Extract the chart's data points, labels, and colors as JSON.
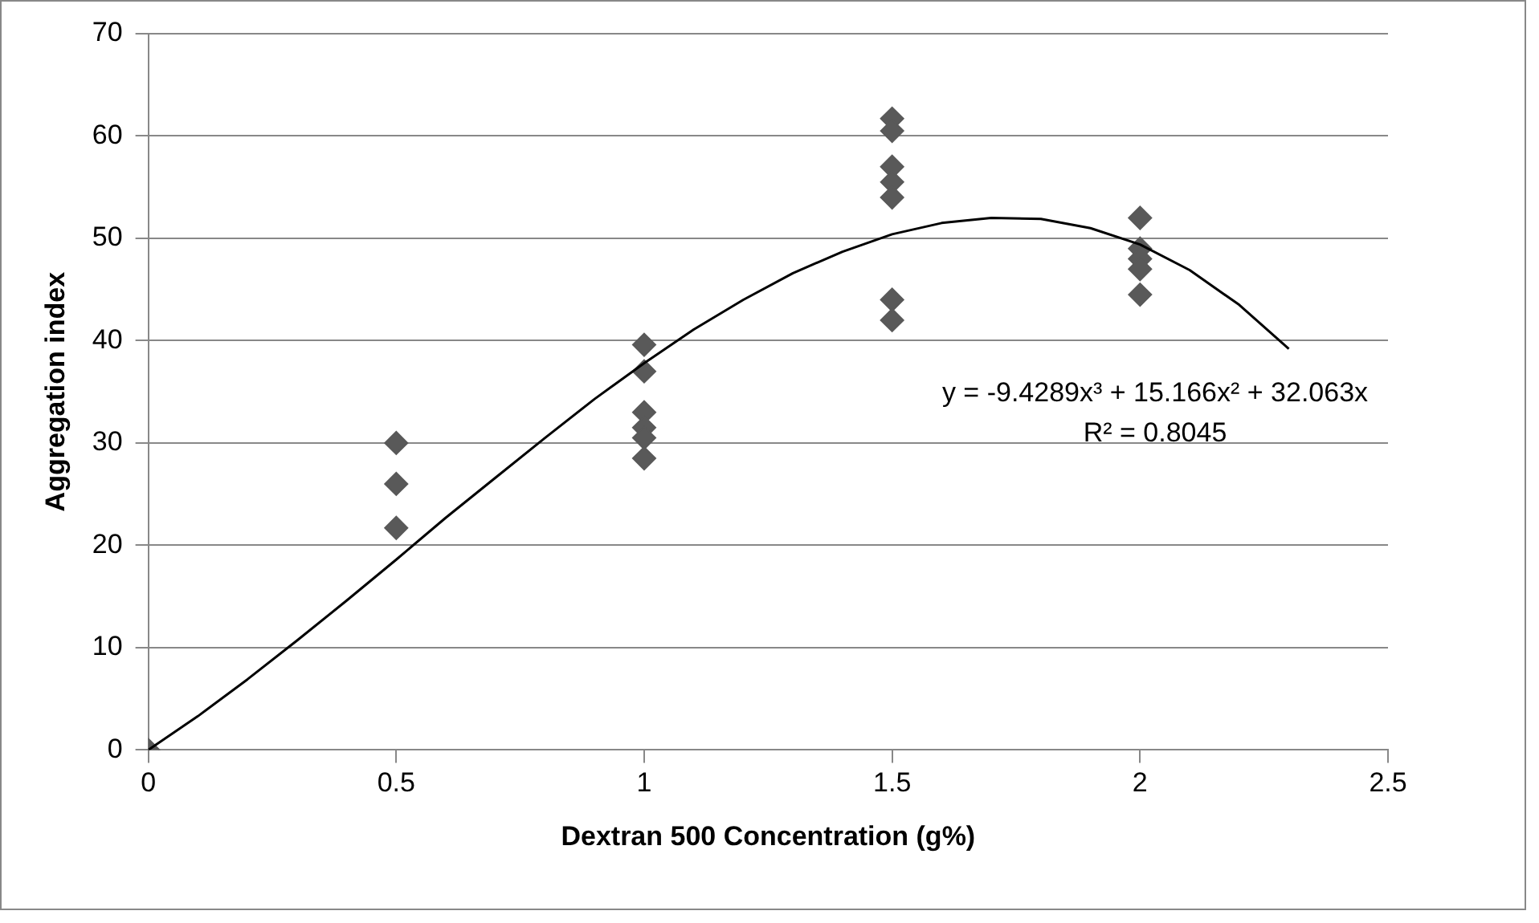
{
  "chart_data": {
    "type": "scatter",
    "xlabel": "Dextran 500 Concentration (g%)",
    "ylabel": "Aggregation index",
    "xlim": [
      0,
      2.5
    ],
    "xticks": [
      0,
      0.5,
      1,
      1.5,
      2,
      2.5
    ],
    "ylim": [
      0,
      70
    ],
    "yticks": [
      0,
      10,
      20,
      30,
      40,
      50,
      60,
      70
    ],
    "grid": "y",
    "legend": false,
    "marker": "diamond",
    "series": [
      {
        "color": "#595959",
        "x": [
          0,
          0.5,
          0.5,
          0.5,
          1,
          1,
          1,
          1,
          1,
          1,
          1.5,
          1.5,
          1.5,
          1.5,
          1.5,
          1.5,
          1.5,
          2,
          2,
          2,
          2,
          2
        ],
        "values": [
          0,
          30,
          26,
          21.7,
          39.6,
          37,
          33,
          31.5,
          30.5,
          28.5,
          61.7,
          60.5,
          57,
          55.5,
          54,
          44,
          42,
          52,
          49,
          48,
          47,
          44.5
        ]
      },
      {
        "type": "line",
        "color": "#000000",
        "marker": "none",
        "x": [
          0,
          0.1,
          0.2,
          0.3,
          0.4,
          0.5,
          0.6,
          0.7,
          0.8,
          0.9,
          1,
          1.1,
          1.2,
          1.3,
          1.4,
          1.5,
          1.6,
          1.7,
          1.8,
          1.9,
          2,
          2.1,
          2.2,
          2.3
        ],
        "values": [
          0,
          3.3,
          6.9,
          10.7,
          14.6,
          18.6,
          22.7,
          26.6,
          30.5,
          34.3,
          37.8,
          41.1,
          44,
          46.6,
          48.7,
          50.4,
          51.5,
          52,
          51.9,
          51,
          49.4,
          46.9,
          43.5,
          39.2
        ]
      }
    ],
    "annotations": [
      "y = -9.4289x³ + 15.166x² + 32.063x",
      "R² = 0.8045"
    ]
  }
}
